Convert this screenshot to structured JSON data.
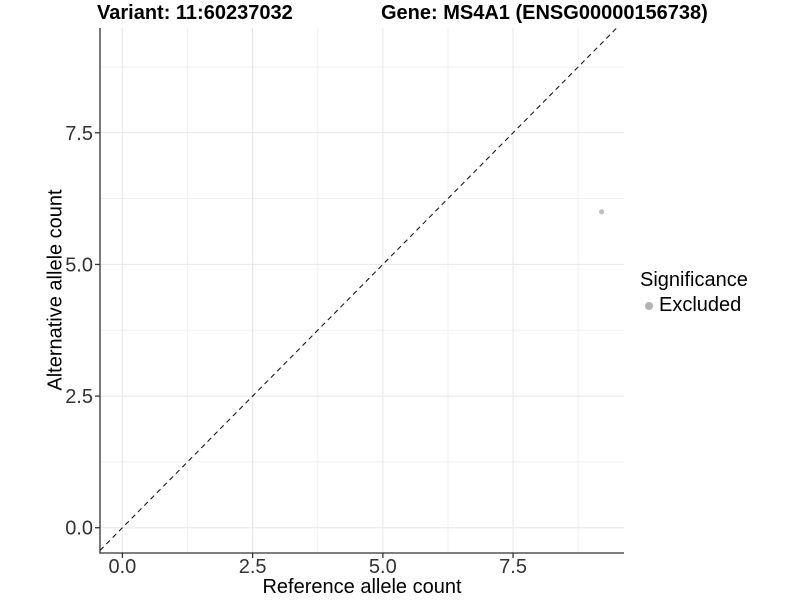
{
  "titles": {
    "variant": "Variant: 11:60237032",
    "gene": "Gene: MS4A1 (ENSG00000156738)"
  },
  "chart_data": {
    "type": "scatter",
    "title": "Variant: 11:60237032 — Gene: MS4A1 (ENSG00000156738)",
    "xlabel": "Reference allele count",
    "ylabel": "Alternative allele count",
    "xlim": [
      -0.43,
      9.63
    ],
    "ylim": [
      -0.48,
      9.49
    ],
    "xticks": [
      0,
      2.5,
      5,
      7.5
    ],
    "xtick_labels": [
      "0.0",
      "2.5",
      "5.0",
      "7.5"
    ],
    "yticks": [
      0,
      2.5,
      5,
      7.5
    ],
    "ytick_labels": [
      "0.0",
      "2.5",
      "5.0",
      "7.5"
    ],
    "x_minor": [
      1.25,
      3.75,
      6.25,
      8.75
    ],
    "y_minor": [
      1.25,
      3.75,
      6.25,
      8.75
    ],
    "grid": "major+minor",
    "series": [
      {
        "name": "Excluded",
        "points": [
          {
            "x": 9.2,
            "y": 6.0
          }
        ]
      }
    ],
    "reference_line": {
      "kind": "identity y=x",
      "style": "dashed",
      "color": "#1a1a1a"
    },
    "legend": {
      "title": "Significance",
      "position": "right",
      "items": [
        {
          "label": "Excluded",
          "color": "#b3b3b3"
        }
      ]
    },
    "colors": {
      "point": "#bfbfbf",
      "grid_major": "#e7e7e7",
      "grid_minor": "#f1f1f1",
      "axis_line": "#333333",
      "tick_label": "#333333",
      "background": "#ffffff"
    }
  }
}
